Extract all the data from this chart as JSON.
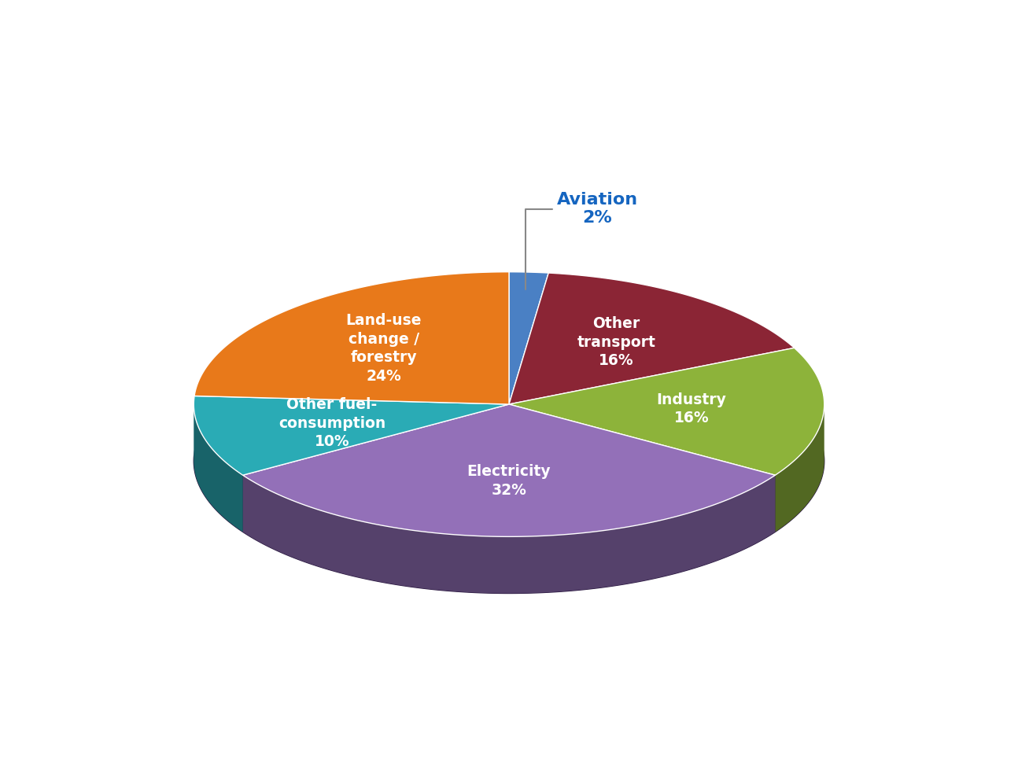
{
  "slices": [
    {
      "label": "Aviation\n2%",
      "value": 2,
      "color": "#4A80C4",
      "text_color": "#1565C0",
      "annotate": true
    },
    {
      "label": "Other\ntransport\n16%",
      "value": 16,
      "color": "#8B2535",
      "text_color": "white",
      "annotate": false
    },
    {
      "label": "Industry\n16%",
      "value": 16,
      "color": "#8DB33A",
      "text_color": "white",
      "annotate": false
    },
    {
      "label": "Electricity\n32%",
      "value": 32,
      "color": "#9370B8",
      "text_color": "white",
      "annotate": false
    },
    {
      "label": "Other fuel-\nconsumption\n10%",
      "value": 10,
      "color": "#2AABB5",
      "text_color": "white",
      "annotate": false
    },
    {
      "label": "Land-use\nchange /\nforestry\n24%",
      "value": 24,
      "color": "#E8791A",
      "text_color": "white",
      "annotate": false
    }
  ],
  "annotation_label": "Aviation\n2%",
  "annotation_color": "#1565C0",
  "startangle": 90,
  "background_color": "#ffffff",
  "figsize": [
    12.94,
    9.88
  ],
  "dpi": 100
}
